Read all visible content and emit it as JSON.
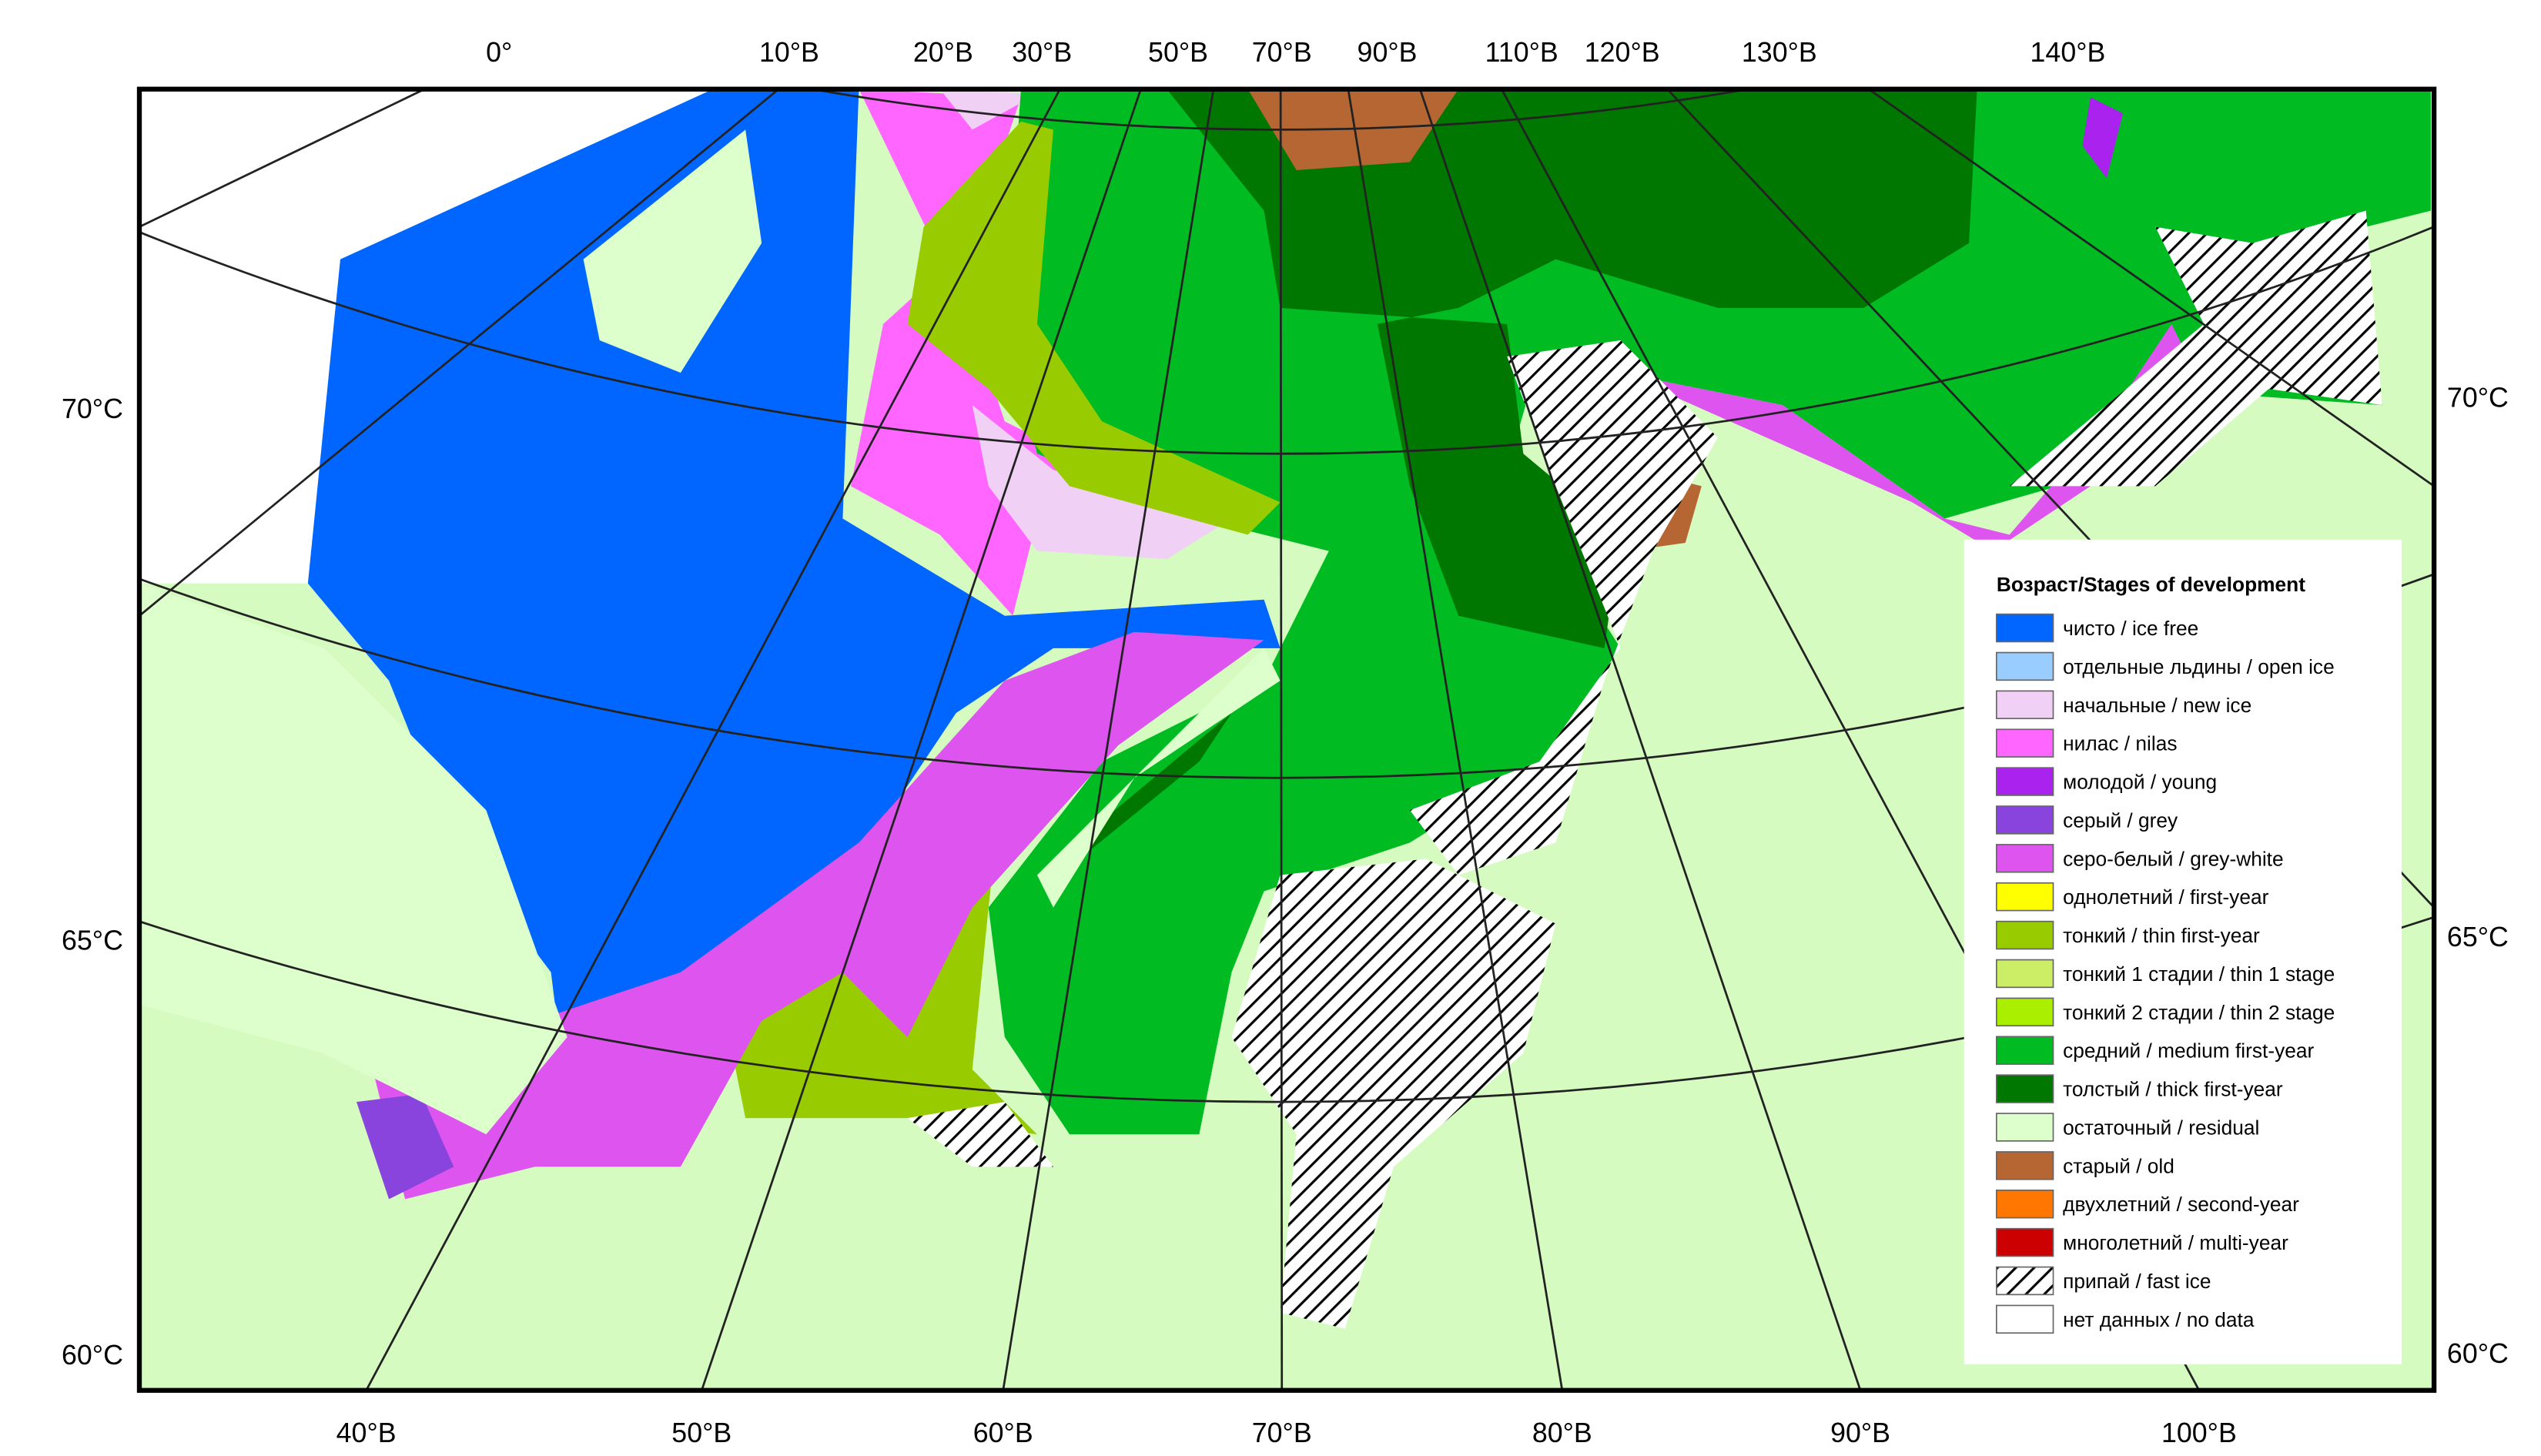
{
  "map": {
    "top_labels": [
      "0°",
      "10°В",
      "20°В",
      "30°В",
      "50°В",
      "70°В",
      "90°В",
      "110°В",
      "120°В",
      "130°В",
      "140°В"
    ],
    "bottom_labels": [
      "40°В",
      "50°В",
      "60°В",
      "70°В",
      "80°В",
      "90°В",
      "100°В"
    ],
    "left_labels": [
      "70°С",
      "65°С",
      "60°С"
    ],
    "right_labels": [
      "70°С",
      "65°С",
      "60°С"
    ]
  },
  "legend": {
    "title": "Возраст/Stages of development",
    "items": [
      {
        "label": "чисто / ice free",
        "color": "#0066ff"
      },
      {
        "label": "отдельные льдины / open ice",
        "color": "#99ccff"
      },
      {
        "label": "начальные / new ice",
        "color": "#f0d0f5"
      },
      {
        "label": "нилас / nilas",
        "color": "#ff66ff"
      },
      {
        "label": "молодой / young",
        "color": "#aa22ee"
      },
      {
        "label": "серый / grey",
        "color": "#8844dd"
      },
      {
        "label": "серо-белый / grey-white",
        "color": "#dd55ee"
      },
      {
        "label": "однолетний / first-year",
        "color": "#ffff00"
      },
      {
        "label": "тонкий / thin first-year",
        "color": "#99cc00"
      },
      {
        "label": "тонкий 1 стадии / thin 1 stage",
        "color": "#ccee66"
      },
      {
        "label": "тонкий 2 стадии / thin 2 stage",
        "color": "#aaee00"
      },
      {
        "label": "средний / medium first-year",
        "color": "#00bb22"
      },
      {
        "label": "толстый / thick first-year",
        "color": "#007700"
      },
      {
        "label": "остаточный / residual",
        "color": "#ddffcc"
      },
      {
        "label": "старый / old",
        "color": "#b56633"
      },
      {
        "label": "двухлетний / second-year",
        "color": "#ff7700"
      },
      {
        "label": "многолетний / multi-year",
        "color": "#cc0000"
      },
      {
        "label": "припай / fast ice",
        "color": "#ffffff",
        "hatched": true
      },
      {
        "label": "нет данных / no data",
        "color": "#ffffff"
      }
    ]
  }
}
